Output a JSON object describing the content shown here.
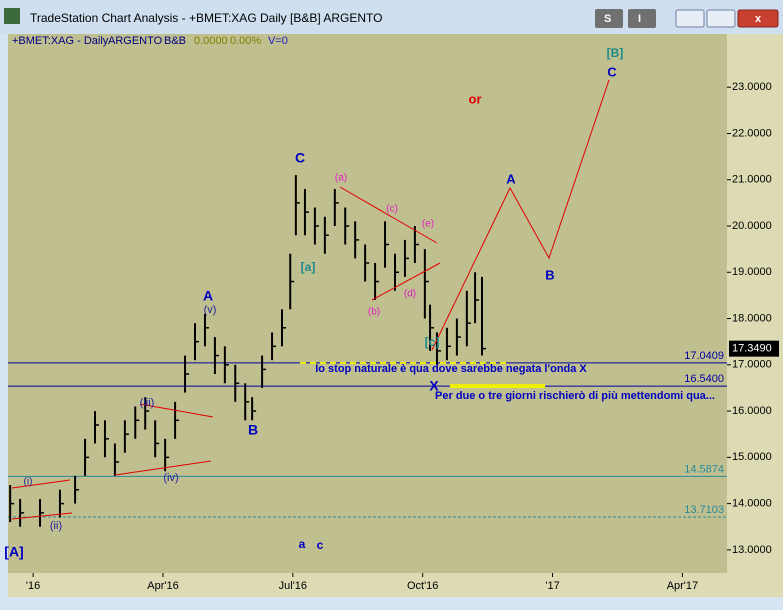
{
  "window": {
    "title": "TradeStation Chart Analysis - +BMET:XAG Daily [B&B] ARGENTO",
    "buttons": [
      "S",
      "I"
    ]
  },
  "header": {
    "symbol": "+BMET:XAG - Daily",
    "name": "ARGENTO",
    "study": "B&B",
    "value": "0.0000",
    "change": "0.00%",
    "volume": "V=0"
  },
  "chart_data": {
    "type": "ohlc",
    "x": [
      -0.53,
      -0.3,
      0.16,
      0.62,
      0.97,
      1.2,
      1.43,
      1.66,
      1.89,
      2.12,
      2.36,
      2.59,
      2.82,
      3.05,
      3.28,
      3.51,
      3.74,
      3.97,
      4.2,
      4.43,
      4.67,
      4.9,
      5.06,
      5.29,
      5.52,
      5.75,
      5.94,
      6.07,
      6.28,
      6.51,
      6.74,
      6.97,
      7.21,
      7.44,
      7.67,
      7.9,
      8.13,
      8.36,
      8.59,
      8.82,
      9.05,
      9.17,
      9.33,
      9.56,
      9.79,
      10.02,
      10.21,
      10.37
    ],
    "close": [
      14.0,
      13.8,
      13.8,
      14.0,
      14.3,
      15.0,
      15.7,
      15.4,
      14.9,
      15.5,
      15.8,
      16.0,
      15.3,
      15.0,
      15.8,
      16.8,
      17.5,
      17.8,
      17.2,
      17.0,
      16.6,
      16.2,
      16.0,
      16.9,
      17.4,
      17.8,
      18.8,
      20.5,
      20.3,
      20.0,
      19.8,
      20.5,
      20.0,
      19.7,
      19.2,
      18.8,
      19.6,
      19.0,
      19.3,
      19.6,
      18.8,
      17.8,
      17.3,
      17.4,
      17.6,
      17.9,
      18.4,
      17.35
    ],
    "high": [
      14.4,
      14.1,
      14.1,
      14.3,
      14.6,
      15.4,
      16.0,
      15.8,
      15.3,
      15.8,
      16.1,
      16.3,
      15.8,
      15.4,
      16.2,
      17.2,
      17.9,
      18.1,
      17.6,
      17.4,
      17.0,
      16.6,
      16.3,
      17.2,
      17.7,
      18.2,
      19.4,
      21.1,
      20.8,
      20.4,
      20.2,
      20.8,
      20.4,
      20.1,
      19.6,
      19.2,
      20.1,
      19.4,
      19.7,
      20.0,
      19.5,
      18.3,
      17.7,
      17.8,
      18.0,
      18.6,
      19.0,
      18.9
    ],
    "low": [
      13.6,
      13.5,
      13.5,
      13.7,
      14.0,
      14.6,
      15.3,
      15.0,
      14.6,
      15.1,
      15.4,
      15.6,
      15.0,
      14.7,
      15.4,
      16.4,
      17.1,
      17.4,
      16.8,
      16.6,
      16.2,
      15.8,
      15.8,
      16.5,
      17.1,
      17.4,
      18.2,
      19.8,
      19.8,
      19.6,
      19.4,
      20.0,
      19.6,
      19.3,
      18.8,
      18.4,
      19.1,
      18.6,
      18.9,
      19.2,
      18.0,
      17.3,
      17.0,
      17.1,
      17.2,
      17.4,
      17.9,
      17.2
    ],
    "color": "#000000",
    "xlim": [
      -0.58,
      16.03
    ],
    "xticks": [
      {
        "value": 0,
        "label": "'16"
      },
      {
        "value": 3,
        "label": "Apr'16"
      },
      {
        "value": 6,
        "label": "Jul'16"
      },
      {
        "value": 9,
        "label": "Oct'16"
      },
      {
        "value": 12,
        "label": "'17"
      },
      {
        "value": 15,
        "label": "Apr'17"
      }
    ],
    "ylim": [
      12.5,
      24.15
    ],
    "yticks": [
      {
        "value": 13,
        "label": "13.0000"
      },
      {
        "value": 14,
        "label": "14.0000"
      },
      {
        "value": 15,
        "label": "15.0000"
      },
      {
        "value": 16,
        "label": "16.0000"
      },
      {
        "value": 17,
        "label": "17.0000"
      },
      {
        "value": 18,
        "label": "18.0000"
      },
      {
        "value": 19,
        "label": "19.0000"
      },
      {
        "value": 20,
        "label": "20.0000"
      },
      {
        "value": 21,
        "label": "21.0000"
      },
      {
        "value": 22,
        "label": "22.0000"
      },
      {
        "value": 23,
        "label": "23.0000"
      }
    ],
    "levels": [
      {
        "value": 17.0409,
        "label": "17.0409",
        "color": "#0000a0"
      },
      {
        "value": 16.54,
        "label": "16.5400",
        "color": "#0000a0"
      },
      {
        "value": 14.5874,
        "label": "14.5874",
        "color": "#2a8a9a"
      },
      {
        "value": 13.7103,
        "label": "13.7103",
        "color": "#2a8a9a",
        "dashed": true
      }
    ],
    "last": {
      "value": 17.349,
      "label": "17.3490"
    },
    "annotations": [
      {
        "text": "[A]",
        "color": "#0000c0"
      },
      {
        "text": "(i)",
        "color": "#2020a0"
      },
      {
        "text": "(ii)",
        "color": "#2020a0"
      },
      {
        "text": "(iii)",
        "color": "#2020a0"
      },
      {
        "text": "(iv)",
        "color": "#2020a0"
      },
      {
        "text": "(v)",
        "color": "#2020a0"
      },
      {
        "text": "A",
        "color": "#0000c0"
      },
      {
        "text": "B",
        "color": "#0000c0"
      },
      {
        "text": "C",
        "color": "#0000c0"
      },
      {
        "text": "[a]",
        "color": "#1a8a8a"
      },
      {
        "text": "(a)",
        "color": "#e020c0"
      },
      {
        "text": "(b)",
        "color": "#e020c0"
      },
      {
        "text": "(c)",
        "color": "#e020c0"
      },
      {
        "text": "(d)",
        "color": "#e020c0"
      },
      {
        "text": "(e)",
        "color": "#e020c0"
      },
      {
        "text": "X",
        "color": "#0000c0"
      },
      {
        "text": "[c]",
        "color": "#1a8a8a"
      },
      {
        "text": "A",
        "color": "#0000c0"
      },
      {
        "text": "B",
        "color": "#0000c0"
      },
      {
        "text": "[B]",
        "color": "#1a8a8a"
      },
      {
        "text": "C",
        "color": "#0000c0"
      },
      {
        "text": "or",
        "color": "#e00000"
      },
      {
        "text": "a",
        "color": "#0000c0"
      },
      {
        "text": "c",
        "color": "#0000c0"
      },
      {
        "text": "Io stop naturale è qua dove sarebbe negata l'onda X",
        "color": "#0000c0"
      },
      {
        "text": "Per due o tre giorni rischierò di più mettendomi qua...",
        "color": "#0000c0"
      }
    ]
  }
}
